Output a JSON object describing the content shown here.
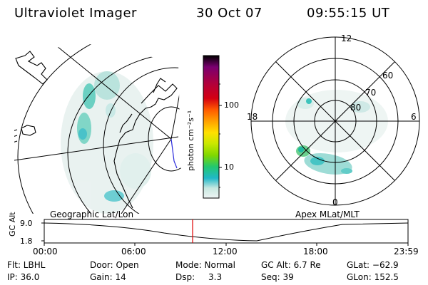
{
  "header": {
    "title": "Ultraviolet Imager",
    "date": "30 Oct 07",
    "time": "09:55:15 UT"
  },
  "colorbar": {
    "unit_label": "photon cm⁻²s⁻¹",
    "ticks": [
      "100",
      "10"
    ],
    "colors": [
      "#000000",
      "#7a0070",
      "#b2003a",
      "#d40012",
      "#ff5a00",
      "#ffa000",
      "#ffe000",
      "#c8e800",
      "#80d800",
      "#22c870",
      "#20b8c8",
      "#c8e8e0",
      "#e8f2f2"
    ]
  },
  "left_panel": {
    "caption": "Geographic Lat/Lon"
  },
  "right_panel": {
    "caption": "Apex MLat/MLT",
    "mlt_labels": {
      "top": "12",
      "left": "18",
      "right": "6",
      "bottom": "0"
    },
    "lat_labels": [
      "60",
      "70",
      "80"
    ]
  },
  "altitude_plot": {
    "y_label": "GC Alt",
    "y_ticks": [
      "9.0",
      "1.8"
    ],
    "x_ticks": [
      "00:00",
      "06:00",
      "12:00",
      "18:00",
      "23:59"
    ],
    "current_time_marker": "09:55:15"
  },
  "info": {
    "filter": "Flt: LBHL",
    "door": "Door: Open",
    "mode": "Mode: Normal",
    "gc_alt": "GC Alt: 6.7 Re",
    "glat": "GLat: −62.9",
    "ip": "IP: 36.0",
    "gain": "Gain: 14",
    "dsp_label": "Dsp:",
    "dsp_value": "3.3",
    "seq": "Seq: 39",
    "glon": "GLon: 152.5"
  }
}
